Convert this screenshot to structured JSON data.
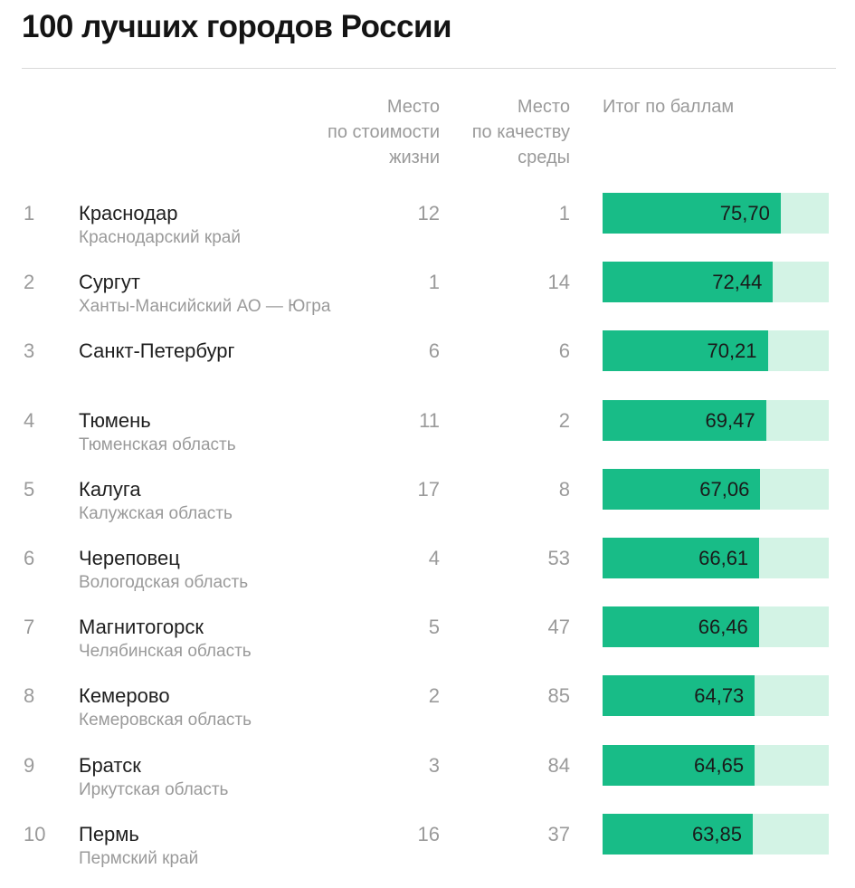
{
  "title": "100 лучших городов России",
  "headers": {
    "cost": [
      "Место",
      "по стоимости",
      "жизни"
    ],
    "env": [
      "Место",
      "по качеству",
      "среды"
    ],
    "score": [
      "Итог по баллам"
    ]
  },
  "colors": {
    "bar_fill": "#18bc87",
    "bar_track": "#d3f3e5"
  },
  "chart_data": {
    "type": "table",
    "title": "100 лучших городов России",
    "columns": [
      "",
      "",
      "Место по стоимости жизни",
      "Место по качеству среды",
      "Итог по баллам"
    ],
    "rows": [
      {
        "rank": "1",
        "city": "Краснодар",
        "region": "Краснодарский край",
        "cost": "12",
        "env": "1",
        "score": 75.7,
        "score_label": "75,70"
      },
      {
        "rank": "2",
        "city": "Сургут",
        "region": "Ханты-Мансийский АО — Югра",
        "cost": "1",
        "env": "14",
        "score": 72.44,
        "score_label": "72,44"
      },
      {
        "rank": "3",
        "city": "Санкт-Петербург",
        "region": "",
        "cost": "6",
        "env": "6",
        "score": 70.21,
        "score_label": "70,21"
      },
      {
        "rank": "4",
        "city": "Тюмень",
        "region": "Тюменская область",
        "cost": "11",
        "env": "2",
        "score": 69.47,
        "score_label": "69,47"
      },
      {
        "rank": "5",
        "city": "Калуга",
        "region": "Калужская область",
        "cost": "17",
        "env": "8",
        "score": 67.06,
        "score_label": "67,06"
      },
      {
        "rank": "6",
        "city": "Череповец",
        "region": "Вологодская область",
        "cost": "4",
        "env": "53",
        "score": 66.61,
        "score_label": "66,61"
      },
      {
        "rank": "7",
        "city": "Магнитогорск",
        "region": "Челябинская область",
        "cost": "5",
        "env": "47",
        "score": 66.46,
        "score_label": "66,46"
      },
      {
        "rank": "8",
        "city": "Кемерово",
        "region": "Кемеровская область",
        "cost": "2",
        "env": "85",
        "score": 64.73,
        "score_label": "64,73"
      },
      {
        "rank": "9",
        "city": "Братск",
        "region": "Иркутская область",
        "cost": "3",
        "env": "84",
        "score": 64.65,
        "score_label": "64,65"
      },
      {
        "rank": "10",
        "city": "Пермь",
        "region": "Пермский край",
        "cost": "16",
        "env": "37",
        "score": 63.85,
        "score_label": "63,85"
      }
    ],
    "score_range": [
      0,
      100
    ]
  }
}
